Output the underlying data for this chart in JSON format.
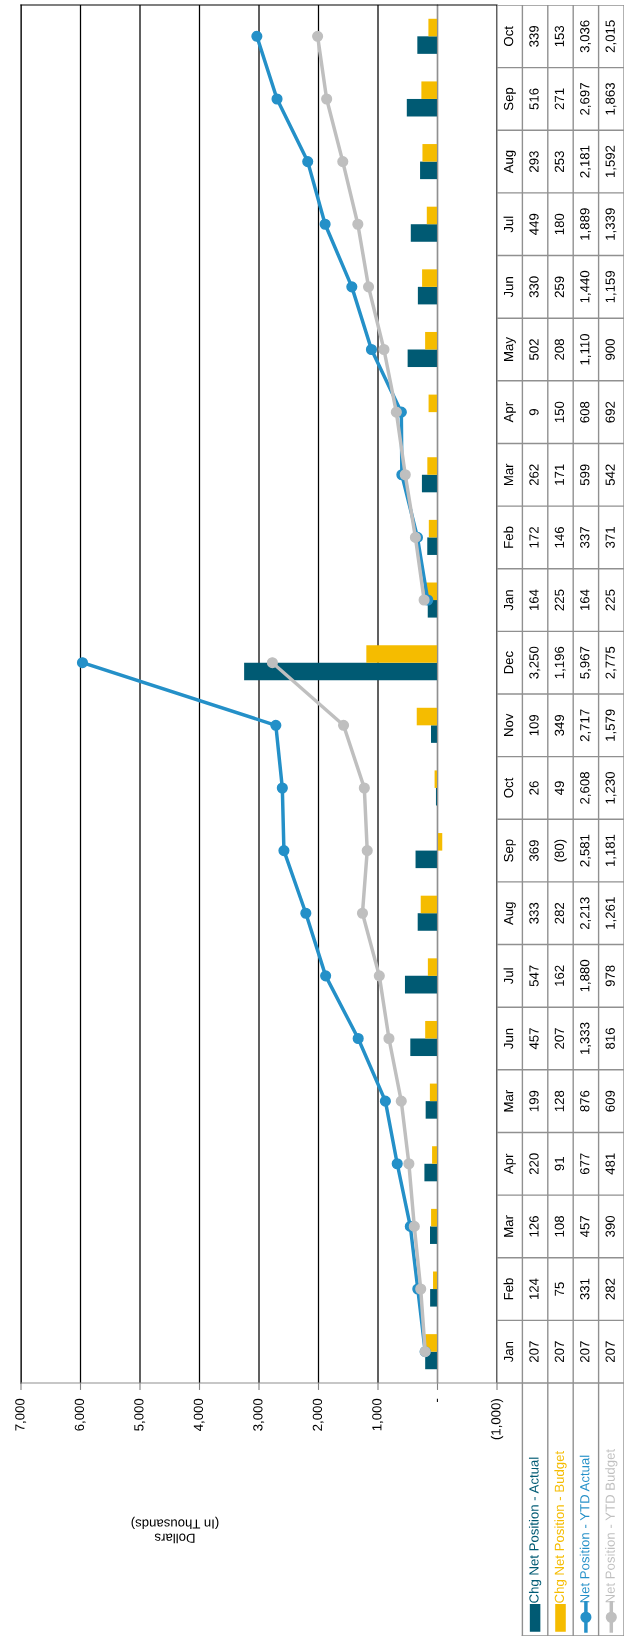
{
  "chart_data": {
    "type": "bar",
    "orientation": "horizontal",
    "annotations": [
      "Dollars\n(In Thousands)"
    ],
    "categories": [
      "Oct",
      "Sep",
      "Aug",
      "Jul",
      "Jun",
      "May",
      "Apr",
      "Mar",
      "Feb",
      "Jan",
      "Dec",
      "Nov",
      "Oct",
      "Sep",
      "Aug",
      "Jul",
      "Jun",
      "Mar",
      "Apr",
      "Mar",
      "Feb",
      "Jan"
    ],
    "xlim": [
      7000,
      -1000
    ],
    "xticks": [
      {
        "value": 7000,
        "label": "7,000"
      },
      {
        "value": 6000,
        "label": "6,000"
      },
      {
        "value": 5000,
        "label": "5,000"
      },
      {
        "value": 4000,
        "label": "4,000"
      },
      {
        "value": 3000,
        "label": "3,000"
      },
      {
        "value": 2000,
        "label": "2,000"
      },
      {
        "value": 1000,
        "label": "1,000"
      },
      {
        "value": 0,
        "label": "-"
      },
      {
        "value": -1000,
        "label": "(1,000)"
      }
    ],
    "grid": "x",
    "legend": "bottom right",
    "marker": "circle",
    "line_style": "solid",
    "series": [
      {
        "name": "Chg Net Position - Actual",
        "color": "#005a73",
        "values": [
          339,
          516,
          293,
          449,
          330,
          502,
          9,
          262,
          172,
          164,
          3250,
          109,
          26,
          369,
          333,
          547,
          457,
          199,
          220,
          126,
          124,
          207
        ],
        "value_labels": [
          "339",
          "516",
          "293",
          "449",
          "330",
          "502",
          "9",
          "262",
          "172",
          "164",
          "3,250",
          "109",
          "26",
          "369",
          "333",
          "547",
          "457",
          "199",
          "220",
          "126",
          "124",
          "207"
        ]
      },
      {
        "name": "Chg Net Position - Budget",
        "color": "#f5bc00",
        "values": [
          153,
          271,
          253,
          180,
          259,
          208,
          150,
          171,
          146,
          225,
          1196,
          349,
          49,
          -80,
          282,
          162,
          207,
          128,
          91,
          108,
          75,
          207
        ],
        "value_labels": [
          "153",
          "271",
          "253",
          "180",
          "259",
          "208",
          "150",
          "171",
          "146",
          "225",
          "1,196",
          "349",
          "49",
          "(80)",
          "282",
          "162",
          "207",
          "128",
          "91",
          "108",
          "75",
          "207"
        ]
      },
      {
        "name": "Net Position - YTD Actual",
        "type": "line",
        "color": "#2490c8",
        "values": [
          3036,
          2697,
          2181,
          1889,
          1440,
          1110,
          608,
          599,
          337,
          164,
          null,
          null,
          null,
          null,
          null,
          null,
          null,
          null,
          null,
          null,
          null,
          null
        ],
        "value_labels": [
          "3,036",
          "2,697",
          "2,181",
          "1,889",
          "1,440",
          "1,110",
          "608",
          "599",
          "337",
          "164",
          "5,967",
          "2,717",
          "2,608",
          "2,581",
          "2,213",
          "1,880",
          "1,333",
          "876",
          "677",
          "457",
          "331",
          "207"
        ]
      },
      {
        "type": "line",
        "color": "#2490c8",
        "values": [
          null,
          null,
          null,
          null,
          null,
          null,
          null,
          null,
          null,
          null,
          5967,
          2717,
          2608,
          2581,
          2213,
          1880,
          1333,
          876,
          677,
          457,
          331,
          207
        ]
      },
      {
        "name": "Net Position - YTD Budget",
        "type": "line",
        "color": "#bfbfbf",
        "values": [
          2015,
          1863,
          1592,
          1339,
          1159,
          900,
          692,
          542,
          371,
          225,
          null,
          null,
          null,
          null,
          null,
          null,
          null,
          null,
          null,
          null,
          null,
          null
        ],
        "value_labels": [
          "2,015",
          "1,863",
          "1,592",
          "1,339",
          "1,159",
          "900",
          "692",
          "542",
          "371",
          "225",
          "2,775",
          "1,579",
          "1,230",
          "1,181",
          "1,261",
          "978",
          "816",
          "609",
          "481",
          "390",
          "282",
          "207"
        ]
      },
      {
        "type": "line",
        "color": "#bfbfbf",
        "values": [
          null,
          null,
          null,
          null,
          null,
          null,
          null,
          null,
          null,
          null,
          2775,
          1579,
          1230,
          1181,
          1261,
          978,
          816,
          609,
          481,
          390,
          282,
          207
        ]
      }
    ]
  }
}
